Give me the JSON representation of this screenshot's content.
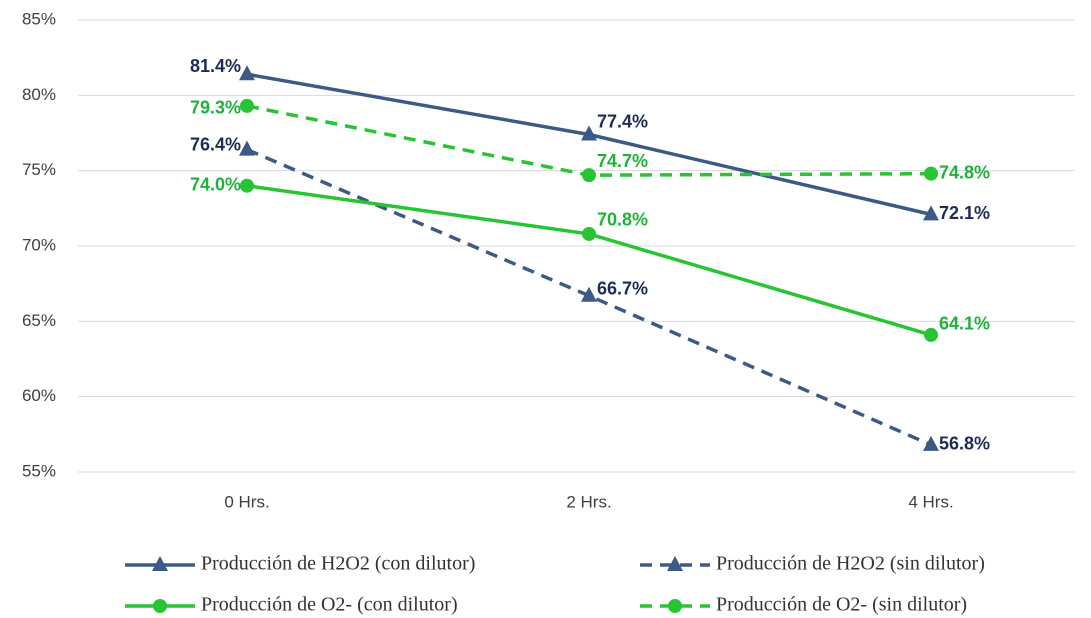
{
  "chart_data": {
    "type": "line",
    "categories": [
      "0 Hrs.",
      "2 Hrs.",
      "4 Hrs."
    ],
    "ylim": [
      55,
      85
    ],
    "yticks": [
      {
        "value": 55,
        "label": "55%"
      },
      {
        "value": 60,
        "label": "60%"
      },
      {
        "value": 65,
        "label": "65%"
      },
      {
        "value": 70,
        "label": "70%"
      },
      {
        "value": 75,
        "label": "75%"
      },
      {
        "value": 80,
        "label": "80%"
      },
      {
        "value": 85,
        "label": "85%"
      }
    ],
    "grid": true,
    "legend": "bottom",
    "series": [
      {
        "name": "Producción de H2O2 (con dilutor)",
        "color": "#3b5a85",
        "label_color": "#1d2b55",
        "dash": false,
        "marker": "triangle",
        "values": [
          81.4,
          77.4,
          72.1
        ],
        "value_labels": [
          "81.4%",
          "77.4%",
          "72.1%"
        ]
      },
      {
        "name": "Producción de H2O2 (sin dilutor)",
        "color": "#3b5a85",
        "label_color": "#1d2b55",
        "dash": true,
        "marker": "triangle",
        "values": [
          76.4,
          66.7,
          56.8
        ],
        "value_labels": [
          "76.4%",
          "66.7%",
          "56.8%"
        ]
      },
      {
        "name": "Producción de O2- (con dilutor)",
        "color": "#26c531",
        "label_color": "#1fb23a",
        "dash": false,
        "marker": "circle",
        "values": [
          74.0,
          70.8,
          64.1
        ],
        "value_labels": [
          "74.0%",
          "70.8%",
          "64.1%"
        ]
      },
      {
        "name": "Producción de O2- (sin dilutor)",
        "color": "#26c531",
        "label_color": "#1fb23a",
        "dash": true,
        "marker": "circle",
        "values": [
          79.3,
          74.7,
          74.8
        ],
        "value_labels": [
          "79.3%",
          "74.7%",
          "74.8%"
        ]
      }
    ]
  }
}
